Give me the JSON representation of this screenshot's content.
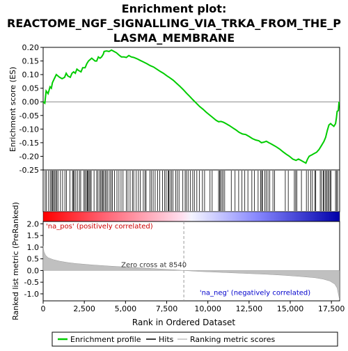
{
  "chart_data": [
    {
      "type": "line",
      "title_lines": [
        "Enrichment plot:",
        "REACTOME_NGF_SIGNALLING_VIA_TRKA_FROM_THE_P",
        "LASMA_MEMBRANE"
      ],
      "ylabel": "Enrichment score (ES)",
      "ylim": [
        -0.25,
        0.2
      ],
      "yticks": [
        "0.20",
        "0.15",
        "0.10",
        "0.05",
        "0.00",
        "-0.05",
        "-0.10",
        "-0.15",
        "-0.20",
        "-0.25"
      ],
      "ytick_values": [
        0.2,
        0.15,
        0.1,
        0.05,
        0.0,
        -0.05,
        -0.1,
        -0.15,
        -0.2,
        -0.25
      ],
      "xlim": [
        0,
        18000
      ],
      "series": [
        {
          "name": "Enrichment profile",
          "color": "#00cc00",
          "points": [
            [
              0,
              0.0
            ],
            [
              100,
              -0.005
            ],
            [
              180,
              0.04
            ],
            [
              300,
              0.03
            ],
            [
              420,
              0.055
            ],
            [
              500,
              0.05
            ],
            [
              560,
              0.07
            ],
            [
              640,
              0.08
            ],
            [
              720,
              0.09
            ],
            [
              800,
              0.1
            ],
            [
              900,
              0.095
            ],
            [
              1000,
              0.09
            ],
            [
              1150,
              0.085
            ],
            [
              1300,
              0.09
            ],
            [
              1400,
              0.105
            ],
            [
              1500,
              0.095
            ],
            [
              1650,
              0.09
            ],
            [
              1750,
              0.105
            ],
            [
              1850,
              0.11
            ],
            [
              1950,
              0.105
            ],
            [
              2050,
              0.12
            ],
            [
              2150,
              0.115
            ],
            [
              2300,
              0.11
            ],
            [
              2400,
              0.125
            ],
            [
              2550,
              0.125
            ],
            [
              2650,
              0.14
            ],
            [
              2750,
              0.15
            ],
            [
              2850,
              0.155
            ],
            [
              2950,
              0.16
            ],
            [
              3050,
              0.155
            ],
            [
              3150,
              0.15
            ],
            [
              3250,
              0.15
            ],
            [
              3350,
              0.165
            ],
            [
              3450,
              0.16
            ],
            [
              3550,
              0.165
            ],
            [
              3650,
              0.175
            ],
            [
              3700,
              0.185
            ],
            [
              3850,
              0.187
            ],
            [
              4000,
              0.185
            ],
            [
              4150,
              0.19
            ],
            [
              4300,
              0.185
            ],
            [
              4450,
              0.18
            ],
            [
              4600,
              0.172
            ],
            [
              4750,
              0.165
            ],
            [
              4900,
              0.165
            ],
            [
              5050,
              0.163
            ],
            [
              5200,
              0.17
            ],
            [
              5350,
              0.165
            ],
            [
              5500,
              0.163
            ],
            [
              5700,
              0.158
            ],
            [
              5900,
              0.152
            ],
            [
              6100,
              0.146
            ],
            [
              6300,
              0.14
            ],
            [
              6500,
              0.133
            ],
            [
              6700,
              0.128
            ],
            [
              6900,
              0.12
            ],
            [
              7100,
              0.112
            ],
            [
              7300,
              0.105
            ],
            [
              7500,
              0.096
            ],
            [
              7700,
              0.088
            ],
            [
              7900,
              0.079
            ],
            [
              8100,
              0.068
            ],
            [
              8300,
              0.057
            ],
            [
              8500,
              0.045
            ],
            [
              8700,
              0.032
            ],
            [
              8900,
              0.02
            ],
            [
              9100,
              0.007
            ],
            [
              9300,
              -0.005
            ],
            [
              9500,
              -0.017
            ],
            [
              9700,
              -0.027
            ],
            [
              9900,
              -0.038
            ],
            [
              10100,
              -0.048
            ],
            [
              10300,
              -0.058
            ],
            [
              10500,
              -0.068
            ],
            [
              10650,
              -0.073
            ],
            [
              10800,
              -0.072
            ],
            [
              10950,
              -0.075
            ],
            [
              11100,
              -0.08
            ],
            [
              11300,
              -0.087
            ],
            [
              11500,
              -0.095
            ],
            [
              11700,
              -0.103
            ],
            [
              11900,
              -0.112
            ],
            [
              12100,
              -0.118
            ],
            [
              12300,
              -0.12
            ],
            [
              12500,
              -0.127
            ],
            [
              12700,
              -0.135
            ],
            [
              12900,
              -0.14
            ],
            [
              13100,
              -0.143
            ],
            [
              13250,
              -0.15
            ],
            [
              13400,
              -0.148
            ],
            [
              13550,
              -0.145
            ],
            [
              13700,
              -0.15
            ],
            [
              13850,
              -0.155
            ],
            [
              14000,
              -0.16
            ],
            [
              14150,
              -0.165
            ],
            [
              14350,
              -0.173
            ],
            [
              14550,
              -0.183
            ],
            [
              14750,
              -0.192
            ],
            [
              14950,
              -0.2
            ],
            [
              15150,
              -0.21
            ],
            [
              15350,
              -0.215
            ],
            [
              15500,
              -0.21
            ],
            [
              15650,
              -0.215
            ],
            [
              15800,
              -0.22
            ],
            [
              15950,
              -0.225
            ],
            [
              16050,
              -0.21
            ],
            [
              16150,
              -0.2
            ],
            [
              16300,
              -0.195
            ],
            [
              16450,
              -0.19
            ],
            [
              16600,
              -0.185
            ],
            [
              16750,
              -0.175
            ],
            [
              16900,
              -0.16
            ],
            [
              17050,
              -0.145
            ],
            [
              17150,
              -0.13
            ],
            [
              17250,
              -0.105
            ],
            [
              17350,
              -0.085
            ],
            [
              17450,
              -0.08
            ],
            [
              17550,
              -0.085
            ],
            [
              17650,
              -0.09
            ],
            [
              17750,
              -0.08
            ],
            [
              17800,
              -0.06
            ],
            [
              17850,
              -0.035
            ],
            [
              17920,
              -0.032
            ],
            [
              17960,
              0.0
            ]
          ]
        }
      ],
      "zero_line": true
    },
    {
      "type": "hits",
      "description_of_marks": "black vertical ticks at gene-set member ranks",
      "hit_ranks": [
        120,
        200,
        330,
        430,
        510,
        560,
        620,
        690,
        760,
        830,
        900,
        1050,
        1180,
        1320,
        1420,
        1620,
        1780,
        1830,
        1890,
        1980,
        2080,
        2200,
        2280,
        2480,
        2540,
        2620,
        2680,
        2720,
        2790,
        2850,
        2920,
        3090,
        3250,
        3330,
        3430,
        3500,
        3580,
        3630,
        3690,
        3780,
        3850,
        3930,
        4050,
        4130,
        4200,
        4330,
        4480,
        4600,
        4730,
        4850,
        5050,
        5150,
        5280,
        5420,
        5500,
        5650,
        5780,
        5900,
        6080,
        6180,
        6250,
        6480,
        6580,
        6680,
        6800,
        6950,
        7080,
        7250,
        7380,
        7470,
        7580,
        7630,
        7700,
        7790,
        7880,
        8050,
        8150,
        8250,
        8480,
        8620,
        8700,
        8800,
        8930,
        9080,
        9180,
        9330,
        9480,
        9670,
        9800,
        10130,
        10260,
        10650,
        10720,
        10760,
        10850,
        10920,
        11020,
        11420,
        11650,
        11870,
        12070,
        12240,
        12430,
        12670,
        12830,
        13050,
        13200,
        13270,
        13320,
        13460,
        13550,
        13650,
        13760,
        13950,
        14050,
        14700,
        14880,
        15250,
        15330,
        15400,
        15680,
        15980,
        16100,
        16250,
        16350,
        16500,
        16550,
        16820,
        16900,
        17000,
        17050,
        17150,
        17200,
        17280,
        17350,
        17420,
        17480,
        17750,
        17820,
        17880
      ]
    },
    {
      "type": "area",
      "ylabel": "Ranked list metric (PreRanked)",
      "xlabel": "Rank in Ordered Dataset",
      "ylim": [
        -1.3,
        2.1
      ],
      "yticks": [
        "2.0",
        "1.5",
        "1.0",
        "0.5",
        "0.0",
        "-0.5",
        "-1.0"
      ],
      "ytick_values": [
        2.0,
        1.5,
        1.0,
        0.5,
        0.0,
        -0.5,
        -1.0
      ],
      "xlim": [
        0,
        18000
      ],
      "xticks": [
        "0",
        "2,500",
        "5,000",
        "7,500",
        "10,000",
        "12,500",
        "15,000",
        "17,500"
      ],
      "xtick_values": [
        0,
        2500,
        5000,
        7500,
        10000,
        12500,
        15000,
        17500
      ],
      "metric_curve": [
        [
          0,
          1.05
        ],
        [
          50,
          0.8
        ],
        [
          150,
          0.65
        ],
        [
          300,
          0.55
        ],
        [
          600,
          0.47
        ],
        [
          1000,
          0.4
        ],
        [
          1500,
          0.34
        ],
        [
          2000,
          0.3
        ],
        [
          3000,
          0.24
        ],
        [
          4000,
          0.19
        ],
        [
          5000,
          0.15
        ],
        [
          6000,
          0.11
        ],
        [
          7000,
          0.07
        ],
        [
          8000,
          0.03
        ],
        [
          8540,
          0.0
        ],
        [
          9500,
          -0.04
        ],
        [
          10500,
          -0.07
        ],
        [
          11500,
          -0.1
        ],
        [
          12500,
          -0.13
        ],
        [
          13500,
          -0.16
        ],
        [
          14500,
          -0.2
        ],
        [
          15500,
          -0.25
        ],
        [
          16500,
          -0.31
        ],
        [
          17000,
          -0.37
        ],
        [
          17400,
          -0.45
        ],
        [
          17700,
          -0.58
        ],
        [
          17850,
          -0.75
        ],
        [
          17950,
          -1.1
        ],
        [
          17990,
          -1.25
        ]
      ],
      "annotations": {
        "pos_label": "'na_pos' (positively correlated)",
        "neg_label": "'na_neg' (negatively correlated)",
        "zero_cross": "Zero cross at 8540",
        "zero_cross_rank": 8540
      },
      "colors": {
        "pos_label": "#cc0000",
        "neg_label": "#0000cc",
        "metric_fill": "#c0c0c0"
      }
    }
  ],
  "legend": {
    "items": [
      {
        "label": "Enrichment profile",
        "color": "#00cc00"
      },
      {
        "label": "Hits",
        "color": "#000000"
      },
      {
        "label": "Ranking metric scores",
        "color": "#c0c0c0"
      }
    ]
  }
}
